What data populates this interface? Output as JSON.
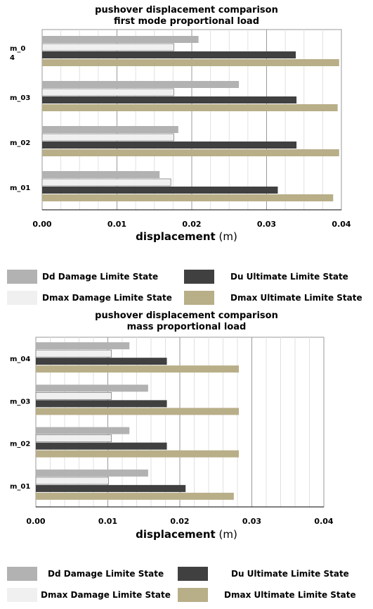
{
  "colors": {
    "dd_damage": "#b2b2b2",
    "dmax_damage": "#f0f0f0",
    "du_ultimate": "#404040",
    "dmax_ultimate": "#b8ae88"
  },
  "legend": [
    {
      "series": "dd_damage",
      "label": "Dd Damage Limite State"
    },
    {
      "series": "du_ultimate",
      "label": "Du Ultimate Limite State"
    },
    {
      "series": "dmax_damage",
      "label": "Dmax Damage Limite State"
    },
    {
      "series": "dmax_ultimate",
      "label": "Dmax Ultimate Limite State"
    }
  ],
  "chart_data": [
    {
      "type": "bar",
      "orientation": "horizontal",
      "title_line1": "pushover displacement comparison",
      "title_line2": "first mode proportional load",
      "xlabel_bold": "displacement",
      "xlabel_unit": "(m)",
      "xlim": [
        0,
        0.04
      ],
      "ticks": [
        "0.00",
        "0.01",
        "0.02",
        "0.03",
        "0.04"
      ],
      "grid": true,
      "legend_position": "bottom",
      "categories": [
        "m_01",
        "m_02",
        "m_03",
        "m_0\n4"
      ],
      "series": [
        {
          "key": "dd_damage",
          "name": "Dd Damage Limite State",
          "values": [
            0.0157,
            0.0182,
            0.0263,
            0.0209
          ]
        },
        {
          "key": "dmax_damage",
          "name": "Dmax Damage Limite State",
          "values": [
            0.0172,
            0.0176,
            0.0176,
            0.0176
          ]
        },
        {
          "key": "du_ultimate",
          "name": "Du Ultimate Limite State",
          "values": [
            0.0315,
            0.034,
            0.034,
            0.0339
          ]
        },
        {
          "key": "dmax_ultimate",
          "name": "Dmax Ultimate Limite State",
          "values": [
            0.0389,
            0.0397,
            0.0395,
            0.0397
          ]
        }
      ]
    },
    {
      "type": "bar",
      "orientation": "horizontal",
      "title_line1": "pushover displacement comparison",
      "title_line2": "mass proportional load",
      "xlabel_bold": "displacement",
      "xlabel_unit": "(m)",
      "xlim": [
        0,
        0.04
      ],
      "ticks": [
        "0.00",
        "0.01",
        "0.02",
        "0.03",
        "0.04"
      ],
      "grid": true,
      "legend_position": "bottom",
      "categories": [
        "m_01",
        "m_02",
        "m_03",
        "m_04"
      ],
      "series": [
        {
          "key": "dd_damage",
          "name": "Dd Damage Limite State",
          "values": [
            0.0156,
            0.013,
            0.0156,
            0.013
          ]
        },
        {
          "key": "dmax_damage",
          "name": "Dmax Damage Limite State",
          "values": [
            0.0101,
            0.0105,
            0.0105,
            0.0105
          ]
        },
        {
          "key": "du_ultimate",
          "name": "Du Ultimate Limite State",
          "values": [
            0.0208,
            0.0182,
            0.0182,
            0.0182
          ]
        },
        {
          "key": "dmax_ultimate",
          "name": "Dmax Ultimate Limite State",
          "values": [
            0.0275,
            0.0282,
            0.0282,
            0.0282
          ]
        }
      ]
    }
  ]
}
